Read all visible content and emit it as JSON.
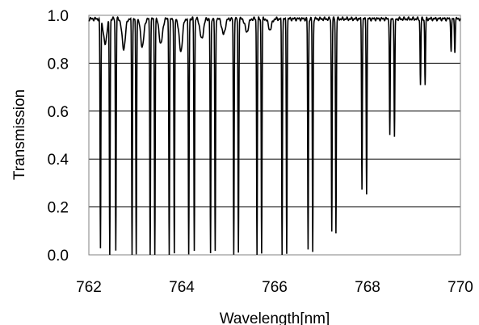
{
  "chart_data": {
    "type": "line",
    "title": "",
    "xlabel": "Wavelength[nm]",
    "ylabel": "Transmission",
    "xlim": [
      762,
      770
    ],
    "ylim": [
      0,
      1.0
    ],
    "x_ticks": [
      "762",
      "764",
      "766",
      "768",
      "770"
    ],
    "y_ticks": [
      "0.0",
      "0.2",
      "0.4",
      "0.6",
      "0.8",
      "1.0"
    ],
    "grid": "horizontal",
    "line_color": "#000000",
    "baseline": 0.985,
    "absorption_lines": [
      {
        "x": 762.25,
        "min": 0.03
      },
      {
        "x": 762.45,
        "min": 0.0
      },
      {
        "x": 762.58,
        "min": 0.02
      },
      {
        "x": 762.93,
        "min": 0.0
      },
      {
        "x": 763.02,
        "min": 0.0
      },
      {
        "x": 763.32,
        "min": 0.0
      },
      {
        "x": 763.42,
        "min": 0.0
      },
      {
        "x": 763.73,
        "min": 0.0
      },
      {
        "x": 763.84,
        "min": 0.0
      },
      {
        "x": 764.15,
        "min": 0.0
      },
      {
        "x": 764.27,
        "min": 0.02
      },
      {
        "x": 764.62,
        "min": 0.0
      },
      {
        "x": 764.72,
        "min": 0.01
      },
      {
        "x": 765.12,
        "min": 0.0
      },
      {
        "x": 765.22,
        "min": 0.01
      },
      {
        "x": 765.62,
        "min": 0.0
      },
      {
        "x": 765.72,
        "min": 0.01
      },
      {
        "x": 766.16,
        "min": 0.0
      },
      {
        "x": 766.26,
        "min": 0.01
      },
      {
        "x": 766.72,
        "min": 0.02
      },
      {
        "x": 766.82,
        "min": 0.01
      },
      {
        "x": 767.23,
        "min": 0.1
      },
      {
        "x": 767.32,
        "min": 0.09
      },
      {
        "x": 767.88,
        "min": 0.28
      },
      {
        "x": 767.98,
        "min": 0.26
      },
      {
        "x": 768.48,
        "min": 0.5
      },
      {
        "x": 768.58,
        "min": 0.49
      },
      {
        "x": 769.14,
        "min": 0.71
      },
      {
        "x": 769.24,
        "min": 0.71
      },
      {
        "x": 769.8,
        "min": 0.85
      },
      {
        "x": 769.88,
        "min": 0.85
      }
    ],
    "shallow_dips": [
      {
        "x": 762.35,
        "min": 0.88
      },
      {
        "x": 762.75,
        "min": 0.86
      },
      {
        "x": 763.15,
        "min": 0.87
      },
      {
        "x": 763.55,
        "min": 0.88
      },
      {
        "x": 763.98,
        "min": 0.85
      },
      {
        "x": 764.43,
        "min": 0.9
      },
      {
        "x": 764.9,
        "min": 0.92
      },
      {
        "x": 765.4,
        "min": 0.93
      },
      {
        "x": 765.9,
        "min": 0.94
      }
    ]
  }
}
